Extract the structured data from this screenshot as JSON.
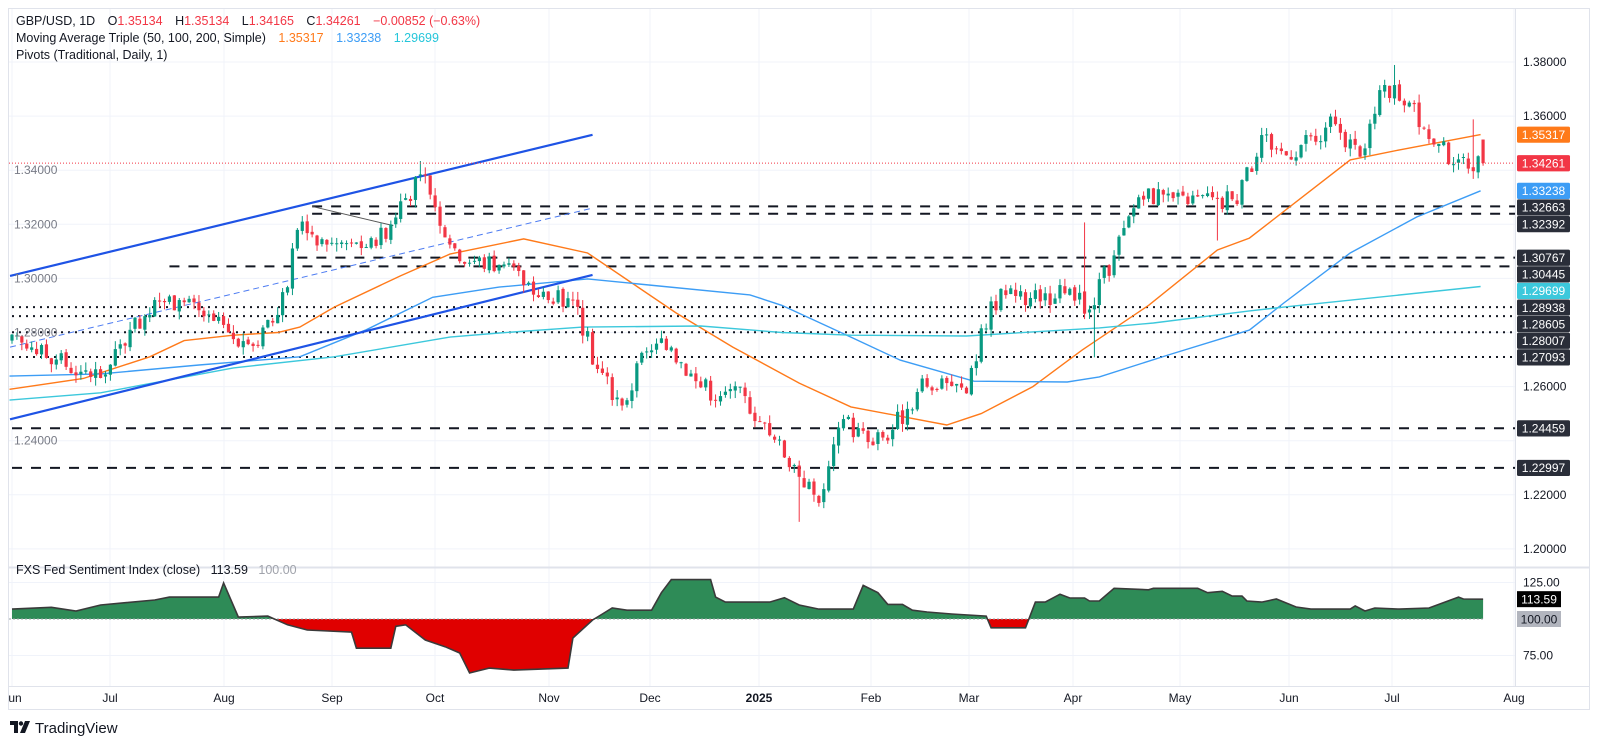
{
  "header": {
    "symbol": "GBP/USD, 1D",
    "open_label": "O",
    "open": "1.35134",
    "high_label": "H",
    "high": "1.35134",
    "low_label": "L",
    "low": "1.34165",
    "close_label": "C",
    "close": "1.34261",
    "change": "−0.00852 (−0.63%)"
  },
  "ma_legend": {
    "title": "Moving Average Triple (50, 100, 200, Simple)",
    "values": [
      "1.35317",
      "1.33238",
      "1.29699"
    ]
  },
  "pivots_legend": {
    "title": "Pivots (Traditional, Daily, 1)"
  },
  "indicator": {
    "title": "FXS Fed Sentiment Index (close)",
    "value": "113.59",
    "baseline": "100.00",
    "ticks": [
      "125.00",
      "75.00"
    ]
  },
  "branding": {
    "logo_text": "TradingView"
  },
  "colors": {
    "up": "#089981",
    "down": "#f23645",
    "ma50": "#ff7a1a",
    "ma100": "#3d9df5",
    "ma200": "#3cc8dc",
    "trend": "#1e53e5",
    "pivot": "#131722",
    "sent_up": "#2e8b57",
    "sent_down": "#e00000",
    "box_dark": "#2a2e39"
  },
  "chart_data": {
    "type": "candlestick",
    "title": "GBP/USD, 1D",
    "xlabel": "",
    "ylabel": "",
    "ylim": [
      1.19,
      1.385
    ],
    "grid": true,
    "price_ticks": [
      "1.38000",
      "1.36000",
      "1.34000",
      "1.32000",
      "1.30000",
      "1.28000",
      "1.26000",
      "1.24000",
      "1.22000",
      "1.20000"
    ],
    "time_axis": {
      "labels": [
        "Jun",
        "Jul",
        "Aug",
        "Sep",
        "Oct",
        "Nov",
        "Dec",
        "2025",
        "Feb",
        "Mar",
        "Apr",
        "May",
        "Jun",
        "Jul",
        "Aug"
      ]
    },
    "start_close": 1.2765,
    "weekly_closes": [
      [
        "2024-06-07",
        1.2745
      ],
      [
        "2024-06-14",
        1.27
      ],
      [
        "2024-06-21",
        1.2655
      ],
      [
        "2024-06-28",
        1.2645
      ],
      [
        "2024-07-05",
        1.281
      ],
      [
        "2024-07-12",
        1.292
      ],
      [
        "2024-07-19",
        1.292
      ],
      [
        "2024-07-26",
        1.286
      ],
      [
        "2024-08-02",
        1.28
      ],
      [
        "2024-08-09",
        1.275
      ],
      [
        "2024-08-16",
        1.2865
      ],
      [
        "2024-08-23",
        1.321
      ],
      [
        "2024-08-30",
        1.3125
      ],
      [
        "2024-09-06",
        1.313
      ],
      [
        "2024-09-13",
        1.312
      ],
      [
        "2024-09-20",
        1.3285
      ],
      [
        "2024-09-27",
        1.338
      ],
      [
        "2024-10-04",
        1.3125
      ],
      [
        "2024-10-11",
        1.3065
      ],
      [
        "2024-10-18",
        1.305
      ],
      [
        "2024-10-25",
        1.2975
      ],
      [
        "2024-11-01",
        1.292
      ],
      [
        "2024-11-08",
        1.292
      ],
      [
        "2024-11-15",
        1.2665
      ],
      [
        "2024-11-22",
        1.253
      ],
      [
        "2024-11-29",
        1.273
      ],
      [
        "2024-12-06",
        1.2745
      ],
      [
        "2024-12-13",
        1.262
      ],
      [
        "2024-12-20",
        1.2565
      ],
      [
        "2024-12-27",
        1.2565
      ],
      [
        "2025-01-03",
        1.242
      ],
      [
        "2025-01-10",
        1.231
      ],
      [
        "2025-01-17",
        1.217
      ],
      [
        "2025-01-24",
        1.248
      ],
      [
        "2025-01-31",
        1.2395
      ],
      [
        "2025-02-07",
        1.244
      ],
      [
        "2025-02-14",
        1.258
      ],
      [
        "2025-02-21",
        1.263
      ],
      [
        "2025-02-28",
        1.2575
      ],
      [
        "2025-03-07",
        1.2915
      ],
      [
        "2025-03-14",
        1.2935
      ],
      [
        "2025-03-21",
        1.2915
      ],
      [
        "2025-03-28",
        1.2945
      ],
      [
        "2025-04-04",
        1.2885
      ],
      [
        "2025-04-11",
        1.3085
      ],
      [
        "2025-04-18",
        1.33
      ],
      [
        "2025-04-25",
        1.331
      ],
      [
        "2025-05-02",
        1.3275
      ],
      [
        "2025-05-09",
        1.33
      ],
      [
        "2025-05-16",
        1.3275
      ],
      [
        "2025-05-23",
        1.353
      ],
      [
        "2025-05-30",
        1.3455
      ],
      [
        "2025-06-06",
        1.3525
      ],
      [
        "2025-06-13",
        1.357
      ],
      [
        "2025-06-20",
        1.345
      ],
      [
        "2025-06-27",
        1.3715
      ],
      [
        "2025-07-04",
        1.365
      ],
      [
        "2025-07-11",
        1.3495
      ],
      [
        "2025-07-18",
        1.344
      ],
      [
        "2025-07-25",
        1.34261
      ]
    ],
    "wick_overrides": [
      [
        83,
        "high",
        1.3434
      ],
      [
        160,
        "low",
        1.21
      ],
      [
        218,
        "high",
        1.3207
      ],
      [
        220,
        "low",
        1.2708
      ],
      [
        245,
        "low",
        1.314
      ],
      [
        281,
        "high",
        1.3789
      ],
      [
        297,
        "high",
        1.3588
      ]
    ],
    "last_candle": {
      "open": 1.35134,
      "high": 1.35134,
      "low": 1.34165,
      "close": 1.34261
    },
    "last_price": 1.34261,
    "moving_averages": [
      {
        "name": "SMA 50",
        "value": 1.35317,
        "color_key": "ma50",
        "points_week": [
          [
            -0.5,
            1.259
          ],
          [
            2.5,
            1.263
          ],
          [
            5.2,
            1.271
          ],
          [
            6.6,
            1.277
          ],
          [
            8.6,
            1.279
          ],
          [
            10.4,
            1.28
          ],
          [
            11.3,
            1.282
          ],
          [
            12.7,
            1.2894
          ],
          [
            15.4,
            1.301
          ],
          [
            17.4,
            1.309
          ],
          [
            20.4,
            1.3146
          ],
          [
            23,
            1.3094
          ],
          [
            24.8,
            1.2983
          ],
          [
            26.6,
            1.2872
          ],
          [
            28.9,
            1.2746
          ],
          [
            31.6,
            1.2613
          ],
          [
            33.7,
            1.2525
          ],
          [
            37.6,
            1.2458
          ],
          [
            39,
            1.25
          ],
          [
            41.1,
            1.26
          ],
          [
            43.1,
            1.2735
          ],
          [
            45.8,
            1.29
          ],
          [
            48.6,
            1.3105
          ],
          [
            49.9,
            1.3149
          ],
          [
            54,
            1.3438
          ],
          [
            56,
            1.3475
          ],
          [
            59.3,
            1.35317
          ]
        ]
      },
      {
        "name": "SMA 100",
        "value": 1.33238,
        "color_key": "ma100",
        "points_week": [
          [
            -0.5,
            1.2639
          ],
          [
            3.2,
            1.2647
          ],
          [
            7.2,
            1.268
          ],
          [
            11.3,
            1.271
          ],
          [
            14,
            1.281
          ],
          [
            16.7,
            1.293
          ],
          [
            19.4,
            1.2968
          ],
          [
            23,
            1.2998
          ],
          [
            25.9,
            1.2972
          ],
          [
            29.6,
            1.2939
          ],
          [
            30.9,
            1.29
          ],
          [
            33.7,
            1.2783
          ],
          [
            35.7,
            1.2698
          ],
          [
            38.7,
            1.262
          ],
          [
            42.5,
            1.2617
          ],
          [
            43.8,
            1.2636
          ],
          [
            46.6,
            1.2717
          ],
          [
            49.9,
            1.2809
          ],
          [
            51.3,
            1.2909
          ],
          [
            54,
            1.3094
          ],
          [
            56.7,
            1.3227
          ],
          [
            59.3,
            1.33238
          ]
        ]
      },
      {
        "name": "SMA 200",
        "value": 1.29699,
        "color_key": "ma200",
        "points_week": [
          [
            -0.5,
            1.255
          ],
          [
            3.2,
            1.2577
          ],
          [
            8.6,
            1.2669
          ],
          [
            12.7,
            1.271
          ],
          [
            17.4,
            1.2783
          ],
          [
            19.4,
            1.2798
          ],
          [
            22.8,
            1.282
          ],
          [
            27.6,
            1.2824
          ],
          [
            30.9,
            1.28
          ],
          [
            33.7,
            1.279
          ],
          [
            38.4,
            1.2787
          ],
          [
            43.8,
            1.2817
          ],
          [
            46,
            1.2835
          ],
          [
            49.9,
            1.288
          ],
          [
            51.3,
            1.2894
          ],
          [
            59.3,
            1.29699
          ]
        ]
      }
    ],
    "pivots": [
      {
        "value": 1.32663,
        "label": "1.32663",
        "style": "dashed",
        "from_day": 61
      },
      {
        "value": 1.32392,
        "label": "1.32392",
        "style": "dashed",
        "from_day": 61
      },
      {
        "value": 1.30767,
        "label": "1.30767",
        "style": "dashed",
        "from_day": 58
      },
      {
        "value": 1.30445,
        "label": "1.30445",
        "style": "dashed",
        "from_day": 32
      },
      {
        "value": 1.28938,
        "label": "1.28938",
        "style": "dotted",
        "from_day": 0
      },
      {
        "value": 1.28605,
        "label": "1.28605",
        "style": "dotted",
        "from_day": 0
      },
      {
        "value": 1.28007,
        "label": "1.28007",
        "style": "dotted",
        "from_day": 0
      },
      {
        "value": 1.27093,
        "label": "1.27093",
        "style": "dotted",
        "from_day": 0
      },
      {
        "value": 1.24459,
        "label": "1.24459",
        "style": "dashed",
        "from_day": 0
      },
      {
        "value": 1.22997,
        "label": "1.22997",
        "style": "dashed",
        "from_day": 0
      }
    ],
    "trendlines": [
      {
        "name": "upper-channel",
        "from": [
          -0.4,
          1.3009
        ],
        "to": [
          118,
          1.3531
        ],
        "style": "solid"
      },
      {
        "name": "lower-channel",
        "from": [
          -0.4,
          1.2479
        ],
        "to": [
          118,
          1.3013
        ],
        "style": "solid"
      },
      {
        "name": "mid-channel",
        "from": [
          -0.4,
          1.2746
        ],
        "to": [
          118,
          1.326
        ],
        "style": "dashed"
      },
      {
        "name": "swing-line",
        "from": [
          61,
          1.3266
        ],
        "to": [
          77.5,
          1.3195
        ],
        "style": "thin"
      }
    ],
    "axis_labels": [
      {
        "label": "1.35317",
        "value": 1.35317,
        "color_key": "ma50"
      },
      {
        "label": "1.34261",
        "value": 1.34261,
        "color_key": "down"
      },
      {
        "label": "1.33238",
        "value": 1.33238,
        "color_key": "ma100"
      },
      {
        "label": "1.32663",
        "value": 1.32663,
        "color_key": "box_dark"
      },
      {
        "label": "1.32392",
        "value": 1.32392,
        "color_key": "box_dark"
      },
      {
        "label": "1.30767",
        "value": 1.30767,
        "color_key": "box_dark"
      },
      {
        "label": "1.30445",
        "value": 1.30445,
        "color_key": "box_dark"
      },
      {
        "label": "1.29699",
        "value": 1.29699,
        "color_key": "ma200"
      },
      {
        "label": "1.28938",
        "value": 1.28938,
        "color_key": "box_dark"
      },
      {
        "label": "1.28605",
        "value": 1.28605,
        "color_key": "box_dark"
      },
      {
        "label": "1.28007",
        "value": 1.28007,
        "color_key": "box_dark"
      },
      {
        "label": "1.27093",
        "value": 1.27093,
        "color_key": "box_dark"
      },
      {
        "label": "1.24459",
        "value": 1.24459,
        "color_key": "box_dark"
      },
      {
        "label": "1.22997",
        "value": 1.22997,
        "color_key": "box_dark"
      }
    ],
    "sentiment_series": [
      [
        0,
        106.8
      ],
      [
        8,
        108
      ],
      [
        13,
        105.5
      ],
      [
        18,
        109.6
      ],
      [
        29,
        113
      ],
      [
        32,
        115
      ],
      [
        42,
        115
      ],
      [
        43,
        124.7
      ],
      [
        46,
        101.4
      ],
      [
        52,
        102
      ],
      [
        56,
        96
      ],
      [
        60,
        92.5
      ],
      [
        69,
        91
      ],
      [
        70,
        80
      ],
      [
        77,
        80
      ],
      [
        78,
        95
      ],
      [
        80,
        96
      ],
      [
        84,
        85.6
      ],
      [
        88,
        81
      ],
      [
        91,
        76.7
      ],
      [
        93,
        63
      ],
      [
        97,
        66.4
      ],
      [
        102,
        65
      ],
      [
        113,
        66.4
      ],
      [
        114,
        87
      ],
      [
        118,
        99.3
      ],
      [
        120,
        103.4
      ],
      [
        122,
        107.5
      ],
      [
        125,
        106
      ],
      [
        130,
        106
      ],
      [
        132,
        118
      ],
      [
        134,
        127
      ],
      [
        142,
        127
      ],
      [
        143,
        115
      ],
      [
        145,
        111.6
      ],
      [
        154,
        111.6
      ],
      [
        157,
        114.6
      ],
      [
        160,
        109.6
      ],
      [
        164,
        106.8
      ],
      [
        171,
        106.8
      ],
      [
        173,
        123
      ],
      [
        176,
        118
      ],
      [
        178,
        110
      ],
      [
        181,
        110
      ],
      [
        183,
        106
      ],
      [
        186,
        104.8
      ],
      [
        191,
        103.4
      ],
      [
        198,
        102
      ],
      [
        199,
        94
      ],
      [
        206,
        94
      ],
      [
        208,
        111.6
      ],
      [
        210,
        111.6
      ],
      [
        213,
        117
      ],
      [
        215,
        114.4
      ],
      [
        218,
        114.4
      ],
      [
        219,
        112.3
      ],
      [
        221,
        112.3
      ],
      [
        224,
        121
      ],
      [
        231,
        120
      ],
      [
        232,
        121
      ],
      [
        241,
        121
      ],
      [
        243,
        118
      ],
      [
        246,
        119
      ],
      [
        248,
        115.7
      ],
      [
        250,
        115.7
      ],
      [
        251,
        112.3
      ],
      [
        254,
        111.6
      ],
      [
        257,
        113.7
      ],
      [
        261,
        108.2
      ],
      [
        264,
        106.8
      ],
      [
        272,
        106.8
      ],
      [
        273,
        109
      ],
      [
        275,
        105.5
      ],
      [
        277,
        107.5
      ],
      [
        282,
        106.8
      ],
      [
        288,
        107.5
      ],
      [
        294,
        115
      ],
      [
        295,
        113.7
      ],
      [
        299,
        113.59
      ]
    ]
  }
}
